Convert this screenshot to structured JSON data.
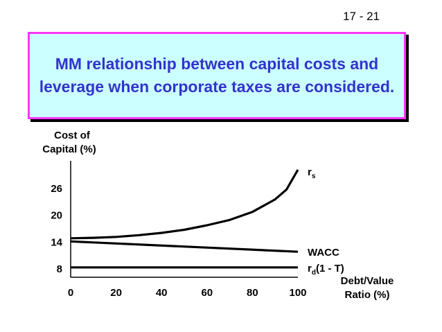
{
  "slide_number": "17 - 21",
  "title": "MM relationship between capital costs and leverage when corporate taxes are considered.",
  "chart_data": {
    "type": "line",
    "ylabel_lines": [
      "Cost of",
      "Capital (%)"
    ],
    "xlabel_lines": [
      "Debt/Value",
      "Ratio (%)"
    ],
    "x_ticks": [
      "0",
      "20",
      "40",
      "60",
      "80",
      "100"
    ],
    "y_ticks": [
      "8",
      "14",
      "20",
      "26"
    ],
    "xlim": [
      0,
      100
    ],
    "ylim": [
      6,
      32
    ],
    "series": [
      {
        "name": "rs",
        "label_main": "r",
        "label_sub": "s",
        "label_suffix": "",
        "x": [
          0,
          10,
          20,
          30,
          40,
          50,
          60,
          70,
          80,
          90,
          95,
          100
        ],
        "y": [
          14.7,
          14.8,
          15.0,
          15.4,
          15.9,
          16.6,
          17.6,
          18.8,
          20.6,
          23.4,
          25.6,
          30.0
        ]
      },
      {
        "name": "WACC",
        "label_main": "WACC",
        "label_sub": "",
        "label_suffix": "",
        "x": [
          0,
          100
        ],
        "y": [
          14.0,
          11.7
        ]
      },
      {
        "name": "rd(1 - T)",
        "label_main": "r",
        "label_sub": "d",
        "label_suffix": "(1 - T)",
        "x": [
          0,
          100
        ],
        "y": [
          8.2,
          8.2
        ]
      }
    ]
  }
}
